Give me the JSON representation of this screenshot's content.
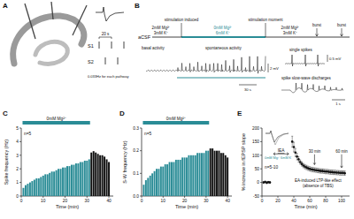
{
  "panel_labels": [
    "A",
    "B",
    "C",
    "D",
    "E"
  ],
  "panel_a": {
    "pathways": [
      "S1",
      "S2"
    ],
    "interval": "20 s",
    "frequency": "0.033Hz for each pathway"
  },
  "panel_b": {
    "solution": "aCSF",
    "events": [
      "stimulation induced",
      "stimulation moment"
    ],
    "phases": [
      [
        "2mM Mg²⁺",
        "3mM K⁺"
      ],
      [
        "0mM Mg²⁺",
        "6mM K⁺"
      ],
      [
        "2mM Mg²⁺",
        "3mM K⁺"
      ]
    ],
    "burst": [
      "burst",
      "burst"
    ],
    "activity": [
      "basal activity",
      "spontaneous activity"
    ],
    "insets": [
      "single spikes",
      "spike slow-wave discharges"
    ],
    "scale_bars": [
      "2 mV",
      "30 s",
      "0.5 mV",
      "1 s"
    ]
  },
  "chart_data": [
    {
      "type": "bar",
      "annotation": "0mM Mg²⁺",
      "n_label": "n=5",
      "x_label": "Time (min)",
      "y_label": "Spike frequency (Hz)",
      "x": [
        1,
        2,
        3,
        4,
        5,
        6,
        7,
        8,
        9,
        10,
        11,
        12,
        13,
        14,
        15,
        16,
        17,
        18,
        19,
        20,
        21,
        22,
        23,
        24,
        25,
        26,
        27,
        28,
        29,
        30,
        31,
        32,
        33,
        34,
        35,
        36,
        37,
        38,
        39,
        40
      ],
      "values": [
        0.6,
        0.8,
        0.9,
        1.0,
        1.1,
        1.2,
        1.3,
        1.3,
        1.4,
        1.5,
        1.6,
        1.6,
        1.7,
        1.8,
        1.8,
        1.9,
        2.0,
        2.0,
        2.1,
        2.1,
        2.2,
        2.2,
        2.3,
        2.3,
        2.4,
        2.4,
        2.5,
        2.5,
        2.6,
        2.6,
        2.7,
        3.2,
        3.3,
        3.2,
        3.1,
        3.0,
        3.0,
        2.9,
        2.7,
        2.5
      ],
      "colors": [
        "#2a8c96",
        "#2a8c96",
        "#2a8c96",
        "#2a8c96",
        "#2a8c96",
        "#2a8c96",
        "#2a8c96",
        "#2a8c96",
        "#2a8c96",
        "#2a8c96",
        "#2a8c96",
        "#2a8c96",
        "#2a8c96",
        "#2a8c96",
        "#2a8c96",
        "#2a8c96",
        "#2a8c96",
        "#2a8c96",
        "#2a8c96",
        "#2a8c96",
        "#2a8c96",
        "#2a8c96",
        "#2a8c96",
        "#2a8c96",
        "#2a8c96",
        "#2a8c96",
        "#2a8c96",
        "#2a8c96",
        "#2a8c96",
        "#2a8c96",
        "#2a8c96",
        "#111111",
        "#111111",
        "#111111",
        "#111111",
        "#111111",
        "#111111",
        "#111111",
        "#111111",
        "#111111"
      ],
      "xlim": [
        0,
        42
      ],
      "xticks": [
        0,
        10,
        20,
        30,
        40
      ],
      "ylim": [
        0,
        5
      ],
      "yticks": [
        0,
        1,
        2,
        3,
        4,
        5
      ],
      "grid": false
    },
    {
      "type": "bar",
      "annotation": "0mM Mg²⁺",
      "n_label": "n=5",
      "x_label": "Time (min)",
      "y_label": "S-W frequency (Hz)",
      "x": [
        1,
        2,
        3,
        4,
        5,
        6,
        7,
        8,
        9,
        10,
        11,
        12,
        13,
        14,
        15,
        16,
        17,
        18,
        19,
        20,
        21,
        22,
        23,
        24,
        25,
        26,
        27,
        28,
        29,
        30,
        31,
        32,
        33,
        34,
        35,
        36,
        37,
        38,
        39,
        40
      ],
      "values": [
        0.05,
        0.07,
        0.08,
        0.09,
        0.1,
        0.11,
        0.12,
        0.12,
        0.13,
        0.13,
        0.14,
        0.14,
        0.15,
        0.15,
        0.15,
        0.16,
        0.16,
        0.16,
        0.17,
        0.17,
        0.17,
        0.18,
        0.18,
        0.18,
        0.18,
        0.19,
        0.19,
        0.19,
        0.19,
        0.2,
        0.2,
        0.21,
        0.21,
        0.2,
        0.2,
        0.2,
        0.19,
        0.19,
        0.18,
        0.17
      ],
      "colors": [
        "#2a8c96",
        "#2a8c96",
        "#2a8c96",
        "#2a8c96",
        "#2a8c96",
        "#2a8c96",
        "#2a8c96",
        "#2a8c96",
        "#2a8c96",
        "#2a8c96",
        "#2a8c96",
        "#2a8c96",
        "#2a8c96",
        "#2a8c96",
        "#2a8c96",
        "#2a8c96",
        "#2a8c96",
        "#2a8c96",
        "#2a8c96",
        "#2a8c96",
        "#2a8c96",
        "#2a8c96",
        "#2a8c96",
        "#2a8c96",
        "#2a8c96",
        "#2a8c96",
        "#2a8c96",
        "#2a8c96",
        "#2a8c96",
        "#2a8c96",
        "#2a8c96",
        "#111111",
        "#111111",
        "#111111",
        "#111111",
        "#111111",
        "#111111",
        "#111111",
        "#111111",
        "#111111"
      ],
      "xlim": [
        0,
        42
      ],
      "xticks": [
        0,
        10,
        20,
        30,
        40
      ],
      "ylim": [
        0,
        0.3
      ],
      "yticks": [
        {
          "value": 0,
          "label": "0.0"
        },
        {
          "value": 0.1,
          "label": "0.1"
        },
        {
          "value": 0.2,
          "label": "0.2"
        },
        {
          "value": 0.3,
          "label": "0.3"
        }
      ],
      "grid": false
    },
    {
      "type": "scatter",
      "n_label": "n=5-10",
      "x_label": "Time (min)",
      "y_label": "% increase in fEPSP slope",
      "annotations": [
        "IEA",
        "0mM Mg²⁺ 6mM K⁺",
        "EA-induced LTP-like effect",
        "(absence of TBS)",
        "30 min",
        "60 min"
      ],
      "x": [
        2,
        4,
        6,
        8,
        10,
        38,
        40,
        42,
        44,
        46,
        48,
        50,
        52,
        54,
        56,
        58,
        60,
        62,
        64,
        66,
        68,
        70,
        72,
        74,
        76,
        78,
        80,
        82,
        84,
        86,
        88,
        90,
        92,
        94,
        96,
        98,
        100,
        102,
        104
      ],
      "values": [
        0,
        2,
        -1,
        1,
        0,
        150,
        130,
        110,
        95,
        85,
        75,
        68,
        62,
        58,
        55,
        52,
        50,
        48,
        47,
        46,
        45,
        44,
        43,
        42,
        42,
        41,
        40,
        40,
        39,
        38,
        38,
        37,
        37,
        36,
        36,
        35,
        35,
        35,
        34
      ],
      "errors": [
        3,
        3,
        3,
        3,
        3,
        20,
        18,
        15,
        12,
        10,
        8,
        8,
        8,
        8,
        8,
        8,
        8,
        8,
        8,
        8,
        8,
        8,
        8,
        8,
        8,
        8,
        8,
        8,
        8,
        8,
        8,
        8,
        8,
        8,
        8,
        8,
        8,
        8,
        8
      ],
      "color": "#111111",
      "marker": "circle",
      "line_style": "none",
      "xlim": [
        0,
        110
      ],
      "xticks": [
        0,
        20,
        40,
        60,
        80,
        100
      ],
      "ylim": [
        -50,
        200
      ],
      "yticks": [
        -50,
        0,
        50,
        100,
        150,
        200
      ],
      "grid": false
    }
  ]
}
